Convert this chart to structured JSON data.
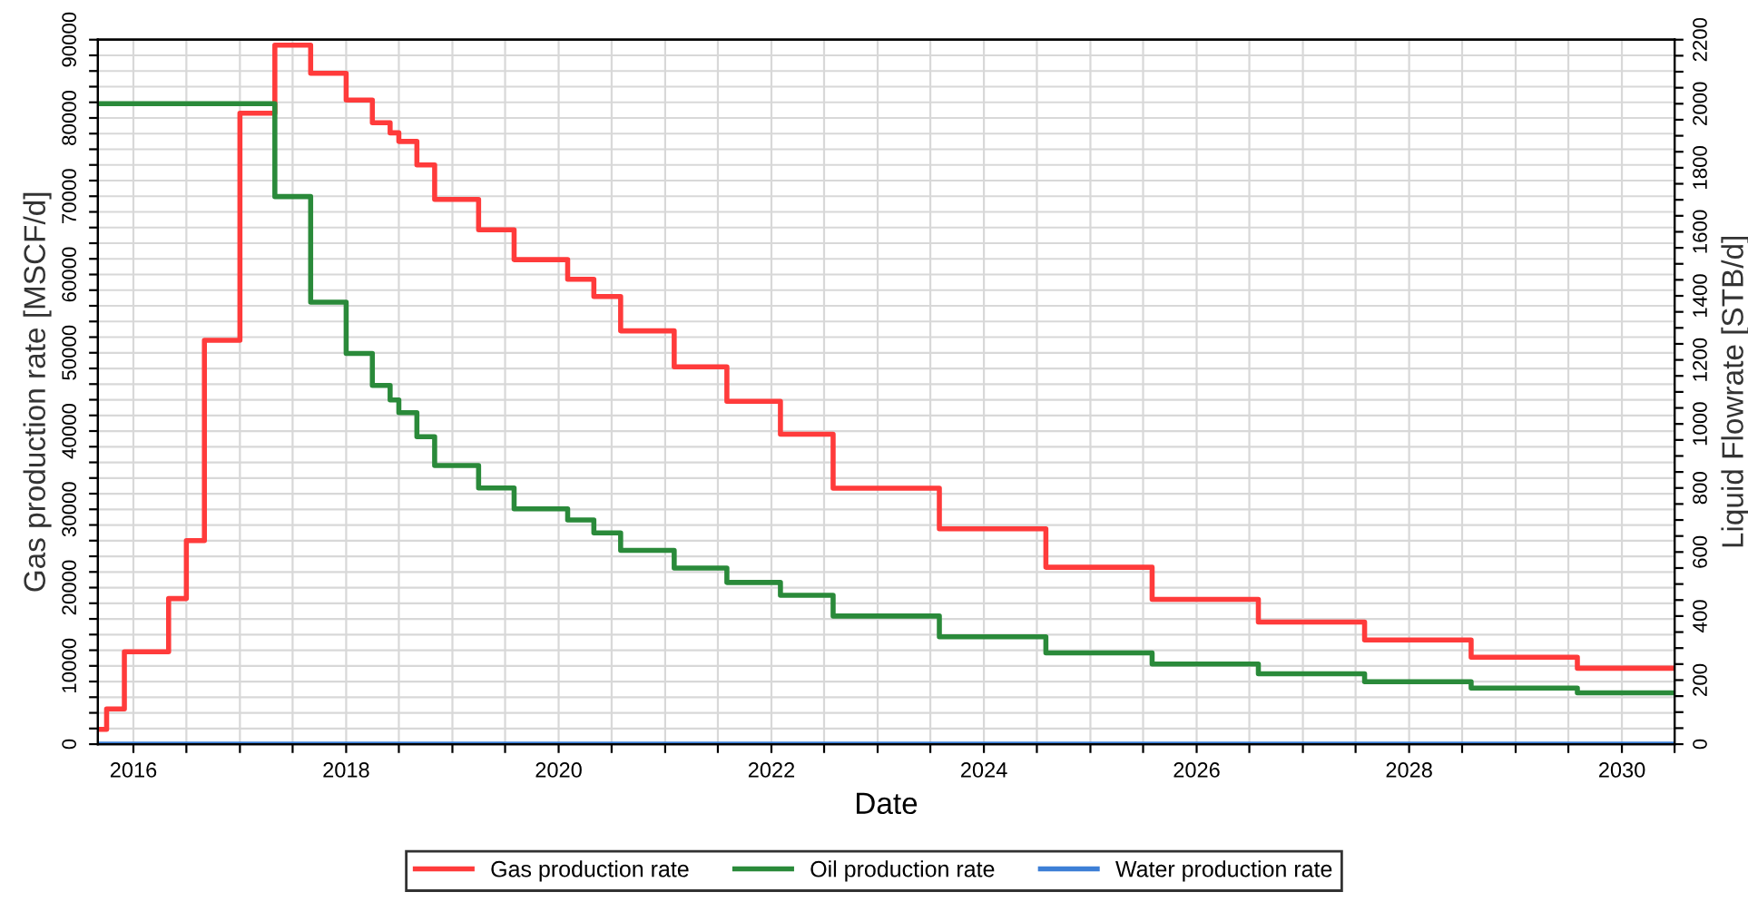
{
  "chart_data": {
    "type": "step",
    "xlabel": "Date",
    "ylabel": "Gas production rate [MSCF/d]",
    "y2label": "Liquid Flowrate [STB/d]",
    "x": [
      "2015-09",
      "2015-10",
      "2015-12",
      "2016-05",
      "2016-07",
      "2016-09",
      "2017-01",
      "2017-05",
      "2017-09",
      "2018-01",
      "2018-04",
      "2018-06",
      "2018-07",
      "2018-09",
      "2018-11",
      "2019-04",
      "2019-08",
      "2020-02",
      "2020-05",
      "2020-08",
      "2021-02",
      "2021-08",
      "2022-02",
      "2022-08",
      "2023-08",
      "2024-08",
      "2025-08",
      "2026-08",
      "2027-08",
      "2028-08",
      "2029-08",
      "2030-07"
    ],
    "series": [
      {
        "name": "Gas production rate",
        "color": "#ff3b3b",
        "values": [
          1900,
          4500,
          11800,
          18600,
          26000,
          51600,
          80600,
          89300,
          85700,
          82300,
          79400,
          78100,
          77000,
          74000,
          69600,
          65700,
          61900,
          59400,
          57200,
          52800,
          48200,
          43800,
          39600,
          32700,
          27500,
          22600,
          18500,
          15600,
          13300,
          11100,
          9700,
          9700
        ]
      },
      {
        "name": "Oil production rate",
        "color": "#2a8a3a",
        "axis": "y2",
        "x": [
          "2015-09",
          "2017-05",
          "2017-09",
          "2018-01",
          "2018-04",
          "2018-06",
          "2018-07",
          "2018-09",
          "2018-11",
          "2019-04",
          "2019-08",
          "2020-02",
          "2020-05",
          "2020-08",
          "2021-02",
          "2021-08",
          "2022-02",
          "2022-08",
          "2023-08",
          "2024-08",
          "2025-08",
          "2026-08",
          "2027-08",
          "2028-08",
          "2029-08",
          "2030-07"
        ],
        "values": [
          2000,
          1710,
          1380,
          1220,
          1120,
          1075,
          1035,
          960,
          870,
          800,
          735,
          700,
          660,
          605,
          550,
          505,
          465,
          400,
          335,
          285,
          250,
          220,
          195,
          175,
          160,
          160
        ]
      },
      {
        "name": "Water production rate",
        "color": "#3d7fd6",
        "axis": "y2",
        "x": [
          "2015-09",
          "2030-07"
        ],
        "values": [
          0,
          0
        ]
      }
    ],
    "xlim": [
      "2015-09",
      "2030-07"
    ],
    "xticks": [
      {
        "value": "2016-01-01",
        "label": "2016"
      },
      {
        "value": "2016-07-01",
        "label": null
      },
      {
        "value": "2017-01-01",
        "label": null
      },
      {
        "value": "2017-07-01",
        "label": null
      },
      {
        "value": "2018-01-01",
        "label": "2018"
      },
      {
        "value": "2018-07-01",
        "label": null
      },
      {
        "value": "2019-01-01",
        "label": null
      },
      {
        "value": "2019-07-01",
        "label": null
      },
      {
        "value": "2020-01-01",
        "label": "2020"
      },
      {
        "value": "2020-07-01",
        "label": null
      },
      {
        "value": "2021-01-01",
        "label": null
      },
      {
        "value": "2021-07-01",
        "label": null
      },
      {
        "value": "2022-01-01",
        "label": "2022"
      },
      {
        "value": "2022-07-01",
        "label": null
      },
      {
        "value": "2023-01-01",
        "label": null
      },
      {
        "value": "2023-07-01",
        "label": null
      },
      {
        "value": "2024-01-01",
        "label": "2024"
      },
      {
        "value": "2024-07-01",
        "label": null
      },
      {
        "value": "2025-01-01",
        "label": null
      },
      {
        "value": "2025-07-01",
        "label": null
      },
      {
        "value": "2026-01-01",
        "label": "2026"
      },
      {
        "value": "2026-07-01",
        "label": null
      },
      {
        "value": "2027-01-01",
        "label": null
      },
      {
        "value": "2027-07-01",
        "label": null
      },
      {
        "value": "2028-01-01",
        "label": "2028"
      },
      {
        "value": "2028-07-01",
        "label": null
      },
      {
        "value": "2029-01-01",
        "label": null
      },
      {
        "value": "2029-07-01",
        "label": null
      },
      {
        "value": "2030-01-01",
        "label": "2030"
      },
      {
        "value": "2030-07-01",
        "label": null
      }
    ],
    "ylim": [
      0,
      90000
    ],
    "yticks": [
      0,
      {
        "value": 2000,
        "label": null
      },
      {
        "value": 4000,
        "label": null
      },
      {
        "value": 6000,
        "label": null
      },
      {
        "value": 8000,
        "label": null
      },
      10000,
      {
        "value": 12000,
        "label": null
      },
      {
        "value": 14000,
        "label": null
      },
      {
        "value": 16000,
        "label": null
      },
      {
        "value": 18000,
        "label": null
      },
      20000,
      {
        "value": 22000,
        "label": null
      },
      {
        "value": 24000,
        "label": null
      },
      {
        "value": 26000,
        "label": null
      },
      {
        "value": 28000,
        "label": null
      },
      30000,
      {
        "value": 32000,
        "label": null
      },
      {
        "value": 34000,
        "label": null
      },
      {
        "value": 36000,
        "label": null
      },
      {
        "value": 38000,
        "label": null
      },
      40000,
      {
        "value": 42000,
        "label": null
      },
      {
        "value": 44000,
        "label": null
      },
      {
        "value": 46000,
        "label": null
      },
      {
        "value": 48000,
        "label": null
      },
      50000,
      {
        "value": 52000,
        "label": null
      },
      {
        "value": 54000,
        "label": null
      },
      {
        "value": 56000,
        "label": null
      },
      {
        "value": 58000,
        "label": null
      },
      60000,
      {
        "value": 62000,
        "label": null
      },
      {
        "value": 64000,
        "label": null
      },
      {
        "value": 66000,
        "label": null
      },
      {
        "value": 68000,
        "label": null
      },
      70000,
      {
        "value": 72000,
        "label": null
      },
      {
        "value": 74000,
        "label": null
      },
      {
        "value": 76000,
        "label": null
      },
      {
        "value": 78000,
        "label": null
      },
      80000,
      {
        "value": 82000,
        "label": null
      },
      {
        "value": 84000,
        "label": null
      },
      {
        "value": 86000,
        "label": null
      },
      {
        "value": 88000,
        "label": null
      },
      90000
    ],
    "y2lim": [
      0,
      2200
    ],
    "y2ticks": [
      0,
      {
        "value": 50,
        "label": null
      },
      {
        "value": 100,
        "label": null
      },
      {
        "value": 150,
        "label": null
      },
      200,
      {
        "value": 250,
        "label": null
      },
      {
        "value": 300,
        "label": null
      },
      {
        "value": 350,
        "label": null
      },
      400,
      {
        "value": 450,
        "label": null
      },
      {
        "value": 500,
        "label": null
      },
      {
        "value": 550,
        "label": null
      },
      600,
      {
        "value": 650,
        "label": null
      },
      {
        "value": 700,
        "label": null
      },
      {
        "value": 750,
        "label": null
      },
      800,
      {
        "value": 850,
        "label": null
      },
      {
        "value": 900,
        "label": null
      },
      {
        "value": 950,
        "label": null
      },
      1000,
      {
        "value": 1050,
        "label": null
      },
      {
        "value": 1100,
        "label": null
      },
      {
        "value": 1150,
        "label": null
      },
      1200,
      {
        "value": 1250,
        "label": null
      },
      {
        "value": 1300,
        "label": null
      },
      {
        "value": 1350,
        "label": null
      },
      1400,
      {
        "value": 1450,
        "label": null
      },
      {
        "value": 1500,
        "label": null
      },
      {
        "value": 1550,
        "label": null
      },
      1600,
      {
        "value": 1650,
        "label": null
      },
      {
        "value": 1700,
        "label": null
      },
      {
        "value": 1750,
        "label": null
      },
      1800,
      {
        "value": 1850,
        "label": null
      },
      {
        "value": 1900,
        "label": null
      },
      {
        "value": 1950,
        "label": null
      },
      2000,
      {
        "value": 2050,
        "label": null
      },
      {
        "value": 2100,
        "label": null
      },
      {
        "value": 2150,
        "label": null
      },
      2200
    ],
    "grid": true,
    "legend": "bottom",
    "line_style": "solid",
    "marker": "none"
  }
}
